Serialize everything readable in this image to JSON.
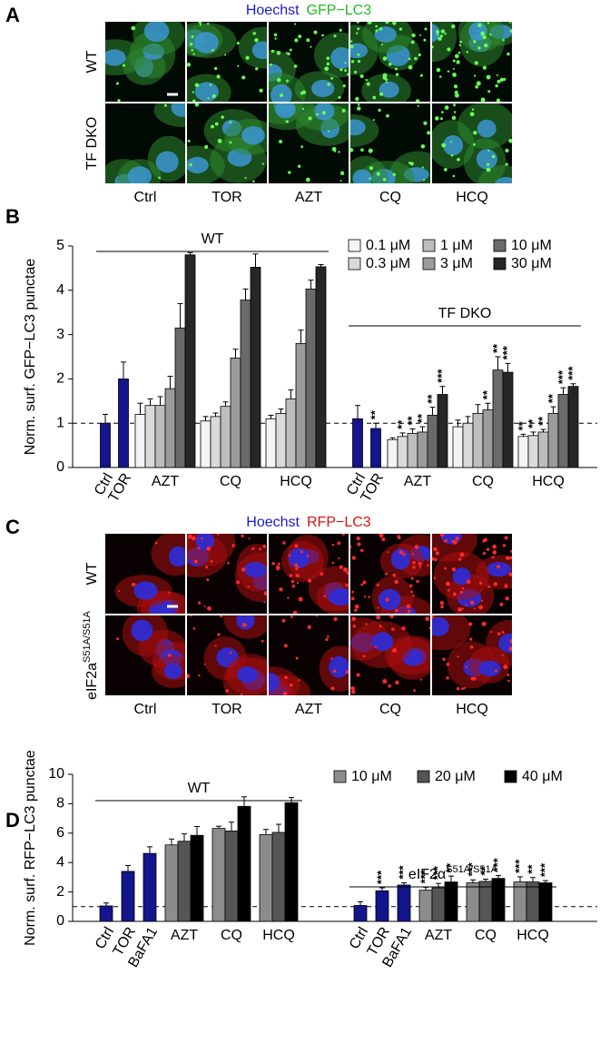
{
  "panel_a": {
    "label": "A",
    "stains": [
      {
        "text": "Hoechst",
        "color": "#1a1acc"
      },
      {
        "text": "GFP−LC3",
        "color": "#22bb22"
      }
    ],
    "rows": [
      {
        "label": "WT"
      },
      {
        "label": "TF DKO"
      }
    ],
    "columns": [
      "Ctrl",
      "TOR",
      "AZT",
      "CQ",
      "HCQ"
    ]
  },
  "panel_c": {
    "label": "C",
    "stains": [
      {
        "text": "Hoechst",
        "color": "#1a1acc"
      },
      {
        "text": "RFP−LC3",
        "color": "#dd1111"
      }
    ],
    "rows": [
      {
        "label": "WT"
      },
      {
        "label": "eIF2a",
        "sup": "S51A/S51A"
      }
    ],
    "columns": [
      "Ctrl",
      "TOR",
      "AZT",
      "CQ",
      "HCQ"
    ]
  },
  "chart_data": [
    {
      "type": "bar",
      "panel_label": "B",
      "y_label": "Norm. surf. GFP−LC3 punctae",
      "ylim": [
        0,
        5
      ],
      "yticks": [
        0,
        1,
        2,
        3,
        4,
        5
      ],
      "hline": 1,
      "groups": [
        {
          "label": "WT",
          "categories": [
            "Ctrl",
            "TOR",
            "AZT",
            "CQ",
            "HCQ"
          ]
        },
        {
          "label": "TF DKO",
          "categories": [
            "Ctrl",
            "TOR",
            "AZT",
            "CQ",
            "HCQ"
          ]
        }
      ],
      "series": [
        {
          "color": "#14148c",
          "values": [
            1.0,
            2.0,
            null,
            null,
            null,
            1.1,
            0.88,
            null,
            null,
            null
          ],
          "errors": [
            0.2,
            0.38,
            null,
            null,
            null,
            0.3,
            0.12,
            null,
            null,
            null
          ],
          "stars": [
            null,
            null,
            null,
            null,
            null,
            null,
            "**",
            null,
            null,
            null
          ]
        },
        {
          "name": "0.1 μM",
          "color": "#f4f4f4",
          "values": [
            null,
            null,
            1.2,
            1.05,
            1.1,
            null,
            null,
            0.63,
            0.92,
            0.7
          ],
          "errors": [
            null,
            null,
            0.25,
            0.1,
            0.08,
            null,
            null,
            0.04,
            0.15,
            0.05
          ],
          "stars": [
            null,
            null,
            null,
            null,
            null,
            null,
            null,
            null,
            null,
            "**"
          ]
        },
        {
          "name": "0.3 μM",
          "color": "#dadada",
          "values": [
            null,
            null,
            1.4,
            1.15,
            1.22,
            null,
            null,
            0.7,
            1.0,
            0.72
          ],
          "errors": [
            null,
            null,
            0.15,
            0.08,
            0.1,
            null,
            null,
            0.08,
            0.15,
            0.08
          ],
          "stars": [
            null,
            null,
            null,
            null,
            null,
            null,
            null,
            "**",
            null,
            "**"
          ]
        },
        {
          "name": "1 μM",
          "color": "#bdbdbd",
          "values": [
            null,
            null,
            1.4,
            1.38,
            1.55,
            null,
            null,
            0.77,
            1.22,
            0.8
          ],
          "errors": [
            null,
            null,
            0.2,
            0.1,
            0.2,
            null,
            null,
            0.1,
            0.2,
            0.06
          ],
          "stars": [
            null,
            null,
            null,
            null,
            null,
            null,
            null,
            "**",
            null,
            "**"
          ]
        },
        {
          "name": "3 μM",
          "color": "#9b9b9b",
          "values": [
            null,
            null,
            1.78,
            2.47,
            2.8,
            null,
            null,
            0.8,
            1.3,
            1.22
          ],
          "errors": [
            null,
            null,
            0.28,
            0.2,
            0.3,
            null,
            null,
            0.12,
            0.15,
            0.15
          ],
          "stars": [
            null,
            null,
            null,
            null,
            null,
            null,
            null,
            "**",
            "**",
            "**"
          ]
        },
        {
          "name": "10 μM",
          "color": "#6a6a6a",
          "values": [
            null,
            null,
            3.15,
            3.78,
            4.03,
            null,
            null,
            1.18,
            2.2,
            1.65
          ],
          "errors": [
            null,
            null,
            0.55,
            0.25,
            0.2,
            null,
            null,
            0.18,
            0.3,
            0.15
          ],
          "stars": [
            null,
            null,
            null,
            null,
            null,
            null,
            null,
            "**",
            "**",
            "***"
          ]
        },
        {
          "name": "30 μM",
          "color": "#262626",
          "values": [
            null,
            null,
            4.8,
            4.52,
            4.53,
            null,
            null,
            1.65,
            2.15,
            1.83
          ],
          "errors": [
            null,
            null,
            0.05,
            0.3,
            0.05,
            null,
            null,
            0.18,
            0.2,
            0.06
          ],
          "stars": [
            null,
            null,
            null,
            null,
            null,
            null,
            null,
            "***",
            "***",
            "***"
          ]
        }
      ]
    },
    {
      "type": "bar",
      "panel_label": "D",
      "y_label": "Norm. surf. RFP−LC3 punctae",
      "ylim": [
        0,
        10
      ],
      "yticks": [
        0,
        2,
        4,
        6,
        8,
        10
      ],
      "hline": 1,
      "groups": [
        {
          "label": "WT",
          "categories": [
            "Ctrl",
            "TOR",
            "BaFA1",
            "AZT",
            "CQ",
            "HCQ"
          ]
        },
        {
          "label": "eIF2α",
          "sup": "S51A/S51A",
          "categories": [
            "Ctrl",
            "TOR",
            "BaFA1",
            "AZT",
            "CQ",
            "HCQ"
          ]
        }
      ],
      "series": [
        {
          "color": "#14148c",
          "values": [
            1.05,
            3.4,
            4.62,
            null,
            null,
            null,
            1.08,
            2.08,
            2.47,
            null,
            null,
            null
          ],
          "errors": [
            0.2,
            0.4,
            0.45,
            null,
            null,
            null,
            0.25,
            0.2,
            0.15,
            null,
            null,
            null
          ],
          "stars": [
            null,
            null,
            null,
            null,
            null,
            null,
            null,
            "***",
            "***",
            null,
            null,
            null
          ]
        },
        {
          "name": "10 μM",
          "color": "#8c8c8c",
          "values": [
            null,
            null,
            null,
            5.2,
            6.32,
            5.9,
            null,
            null,
            null,
            2.12,
            2.62,
            2.68
          ],
          "errors": [
            null,
            null,
            null,
            0.4,
            0.15,
            0.35,
            null,
            null,
            null,
            0.2,
            0.2,
            0.35
          ],
          "stars": [
            null,
            null,
            null,
            null,
            null,
            null,
            null,
            null,
            null,
            "***",
            "***",
            "***"
          ]
        },
        {
          "name": "20 μM",
          "color": "#555555",
          "values": [
            null,
            null,
            null,
            5.45,
            6.15,
            6.05,
            null,
            null,
            null,
            2.28,
            2.72,
            2.68
          ],
          "errors": [
            null,
            null,
            null,
            0.5,
            0.6,
            0.55,
            null,
            null,
            null,
            0.3,
            0.15,
            0.3
          ],
          "stars": [
            null,
            null,
            null,
            null,
            null,
            null,
            null,
            null,
            null,
            "***",
            "**",
            "**"
          ]
        },
        {
          "name": "40 μM",
          "color": "#000000",
          "values": [
            null,
            null,
            null,
            5.85,
            7.82,
            8.07,
            null,
            null,
            null,
            2.68,
            2.92,
            2.62
          ],
          "errors": [
            null,
            null,
            null,
            0.6,
            0.65,
            0.35,
            null,
            null,
            null,
            0.4,
            0.2,
            0.15
          ],
          "stars": [
            null,
            null,
            null,
            null,
            null,
            null,
            null,
            null,
            null,
            "**",
            "***",
            "***"
          ]
        }
      ]
    }
  ]
}
